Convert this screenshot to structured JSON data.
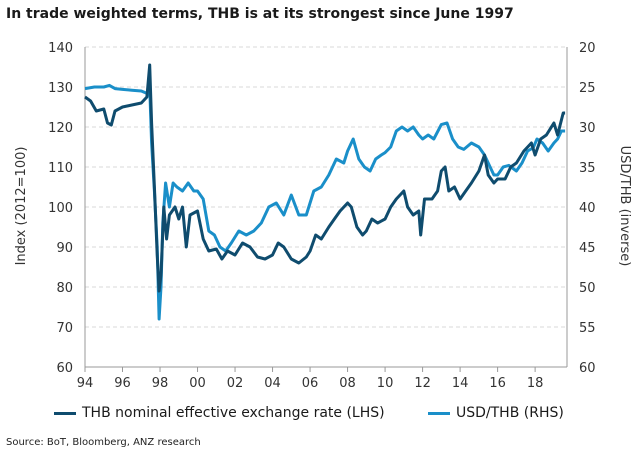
{
  "title": "In trade weighted terms, THB is at its strongest since June 1997",
  "source": "Source: BoT, Bloomberg, ANZ research",
  "colors": {
    "neer": "#0f4c6e",
    "usdthb": "#1a8fc9",
    "grid": "#d9d9d9",
    "axis": "#999999"
  },
  "chart_data": {
    "type": "line",
    "xlabel": "",
    "ylabel_left": "Index (2012=100)",
    "ylabel_right": "USD/THB (inverse)",
    "x_ticks": [
      "94",
      "96",
      "98",
      "00",
      "02",
      "04",
      "06",
      "08",
      "10",
      "12",
      "14",
      "16",
      "18"
    ],
    "x_range": [
      1994,
      2019.7
    ],
    "ylim_left": [
      60,
      140
    ],
    "ylim_right": [
      20,
      60
    ],
    "right_axis_inverted": true,
    "y_ticks_left": [
      60,
      70,
      80,
      90,
      100,
      110,
      120,
      130,
      140
    ],
    "y_ticks_right": [
      20,
      25,
      30,
      35,
      40,
      45,
      50,
      55,
      60
    ],
    "grid": "horizontal dashed",
    "legend_position": "bottom",
    "series": [
      {
        "name": "THB nominal effective exchange rate (LHS)",
        "axis": "left",
        "points": [
          [
            1994.0,
            127.5
          ],
          [
            1994.3,
            126.5
          ],
          [
            1994.6,
            124
          ],
          [
            1995.0,
            124.5
          ],
          [
            1995.2,
            121
          ],
          [
            1995.4,
            120.5
          ],
          [
            1995.6,
            124
          ],
          [
            1996.0,
            125
          ],
          [
            1996.5,
            125.5
          ],
          [
            1997.0,
            126
          ],
          [
            1997.3,
            127.5
          ],
          [
            1997.45,
            135.5
          ],
          [
            1997.55,
            121
          ],
          [
            1997.7,
            105
          ],
          [
            1997.85,
            88
          ],
          [
            1997.95,
            79
          ],
          [
            1998.05,
            83
          ],
          [
            1998.2,
            100
          ],
          [
            1998.35,
            92
          ],
          [
            1998.5,
            98
          ],
          [
            1998.8,
            100
          ],
          [
            1999.0,
            97
          ],
          [
            1999.2,
            100
          ],
          [
            1999.4,
            90
          ],
          [
            1999.6,
            98
          ],
          [
            2000.0,
            99
          ],
          [
            2000.3,
            92
          ],
          [
            2000.6,
            89
          ],
          [
            2001.0,
            89.5
          ],
          [
            2001.3,
            87
          ],
          [
            2001.6,
            89
          ],
          [
            2002.0,
            88
          ],
          [
            2002.4,
            91
          ],
          [
            2002.8,
            90
          ],
          [
            2003.2,
            87.5
          ],
          [
            2003.6,
            87
          ],
          [
            2004.0,
            88
          ],
          [
            2004.3,
            91
          ],
          [
            2004.6,
            90
          ],
          [
            2005.0,
            87
          ],
          [
            2005.4,
            86
          ],
          [
            2005.8,
            87.5
          ],
          [
            2006.0,
            89
          ],
          [
            2006.3,
            93
          ],
          [
            2006.6,
            92
          ],
          [
            2007.0,
            95
          ],
          [
            2007.3,
            97
          ],
          [
            2007.6,
            99
          ],
          [
            2008.0,
            101
          ],
          [
            2008.2,
            100
          ],
          [
            2008.5,
            95
          ],
          [
            2008.8,
            93
          ],
          [
            2009.0,
            94
          ],
          [
            2009.3,
            97
          ],
          [
            2009.6,
            96
          ],
          [
            2010.0,
            97
          ],
          [
            2010.3,
            100
          ],
          [
            2010.6,
            102
          ],
          [
            2011.0,
            104
          ],
          [
            2011.2,
            100
          ],
          [
            2011.5,
            98
          ],
          [
            2011.8,
            99
          ],
          [
            2011.9,
            93
          ],
          [
            2012.1,
            102
          ],
          [
            2012.5,
            102
          ],
          [
            2012.8,
            104
          ],
          [
            2013.0,
            109
          ],
          [
            2013.2,
            110
          ],
          [
            2013.4,
            104
          ],
          [
            2013.7,
            105
          ],
          [
            2014.0,
            102
          ],
          [
            2014.3,
            104
          ],
          [
            2014.6,
            106
          ],
          [
            2015.0,
            109
          ],
          [
            2015.3,
            113
          ],
          [
            2015.5,
            108
          ],
          [
            2015.8,
            106
          ],
          [
            2016.0,
            107
          ],
          [
            2016.4,
            107
          ],
          [
            2016.7,
            110
          ],
          [
            2017.0,
            111
          ],
          [
            2017.4,
            114
          ],
          [
            2017.8,
            116
          ],
          [
            2018.0,
            113
          ],
          [
            2018.3,
            117
          ],
          [
            2018.6,
            118
          ],
          [
            2019.0,
            121
          ],
          [
            2019.2,
            118
          ],
          [
            2019.5,
            123.5
          ],
          [
            2019.6,
            123.5
          ]
        ]
      },
      {
        "name": "USD/THB (RHS)",
        "axis": "right",
        "points": [
          [
            1994.0,
            25.2
          ],
          [
            1994.5,
            25
          ],
          [
            1995.0,
            25
          ],
          [
            1995.3,
            24.8
          ],
          [
            1995.6,
            25.2
          ],
          [
            1996.0,
            25.3
          ],
          [
            1996.5,
            25.4
          ],
          [
            1997.0,
            25.5
          ],
          [
            1997.3,
            25.8
          ],
          [
            1997.45,
            25
          ],
          [
            1997.55,
            32
          ],
          [
            1997.7,
            38
          ],
          [
            1997.85,
            45
          ],
          [
            1997.95,
            54
          ],
          [
            1998.05,
            50
          ],
          [
            1998.15,
            42
          ],
          [
            1998.3,
            37
          ],
          [
            1998.5,
            40
          ],
          [
            1998.7,
            37
          ],
          [
            1998.9,
            37.5
          ],
          [
            1999.2,
            38
          ],
          [
            1999.5,
            37
          ],
          [
            1999.8,
            38
          ],
          [
            2000.0,
            38
          ],
          [
            2000.3,
            39
          ],
          [
            2000.6,
            43
          ],
          [
            2000.9,
            43.5
          ],
          [
            2001.2,
            45
          ],
          [
            2001.5,
            45.5
          ],
          [
            2001.8,
            44.5
          ],
          [
            2002.2,
            43
          ],
          [
            2002.6,
            43.5
          ],
          [
            2003.0,
            43
          ],
          [
            2003.4,
            42
          ],
          [
            2003.8,
            40
          ],
          [
            2004.2,
            39.5
          ],
          [
            2004.6,
            41
          ],
          [
            2005.0,
            38.5
          ],
          [
            2005.4,
            41
          ],
          [
            2005.8,
            41
          ],
          [
            2006.2,
            38
          ],
          [
            2006.6,
            37.5
          ],
          [
            2007.0,
            36
          ],
          [
            2007.4,
            34
          ],
          [
            2007.8,
            34.5
          ],
          [
            2008.0,
            33
          ],
          [
            2008.3,
            31.5
          ],
          [
            2008.6,
            34
          ],
          [
            2008.9,
            35
          ],
          [
            2009.2,
            35.5
          ],
          [
            2009.5,
            34
          ],
          [
            2009.8,
            33.5
          ],
          [
            2010.0,
            33.2
          ],
          [
            2010.3,
            32.5
          ],
          [
            2010.6,
            30.5
          ],
          [
            2010.9,
            30
          ],
          [
            2011.2,
            30.5
          ],
          [
            2011.5,
            30
          ],
          [
            2011.8,
            31
          ],
          [
            2012.0,
            31.5
          ],
          [
            2012.3,
            31
          ],
          [
            2012.6,
            31.5
          ],
          [
            2013.0,
            29.7
          ],
          [
            2013.3,
            29.5
          ],
          [
            2013.6,
            31.5
          ],
          [
            2013.9,
            32.5
          ],
          [
            2014.2,
            32.8
          ],
          [
            2014.6,
            32
          ],
          [
            2015.0,
            32.5
          ],
          [
            2015.3,
            33.5
          ],
          [
            2015.6,
            35
          ],
          [
            2015.8,
            36
          ],
          [
            2016.0,
            36
          ],
          [
            2016.3,
            35
          ],
          [
            2016.6,
            34.8
          ],
          [
            2017.0,
            35.5
          ],
          [
            2017.3,
            34.5
          ],
          [
            2017.6,
            33
          ],
          [
            2017.9,
            32.6
          ],
          [
            2018.1,
            31.5
          ],
          [
            2018.4,
            32
          ],
          [
            2018.7,
            33
          ],
          [
            2019.0,
            32
          ],
          [
            2019.2,
            31.5
          ],
          [
            2019.4,
            30.5
          ],
          [
            2019.6,
            30.5
          ]
        ]
      }
    ]
  }
}
